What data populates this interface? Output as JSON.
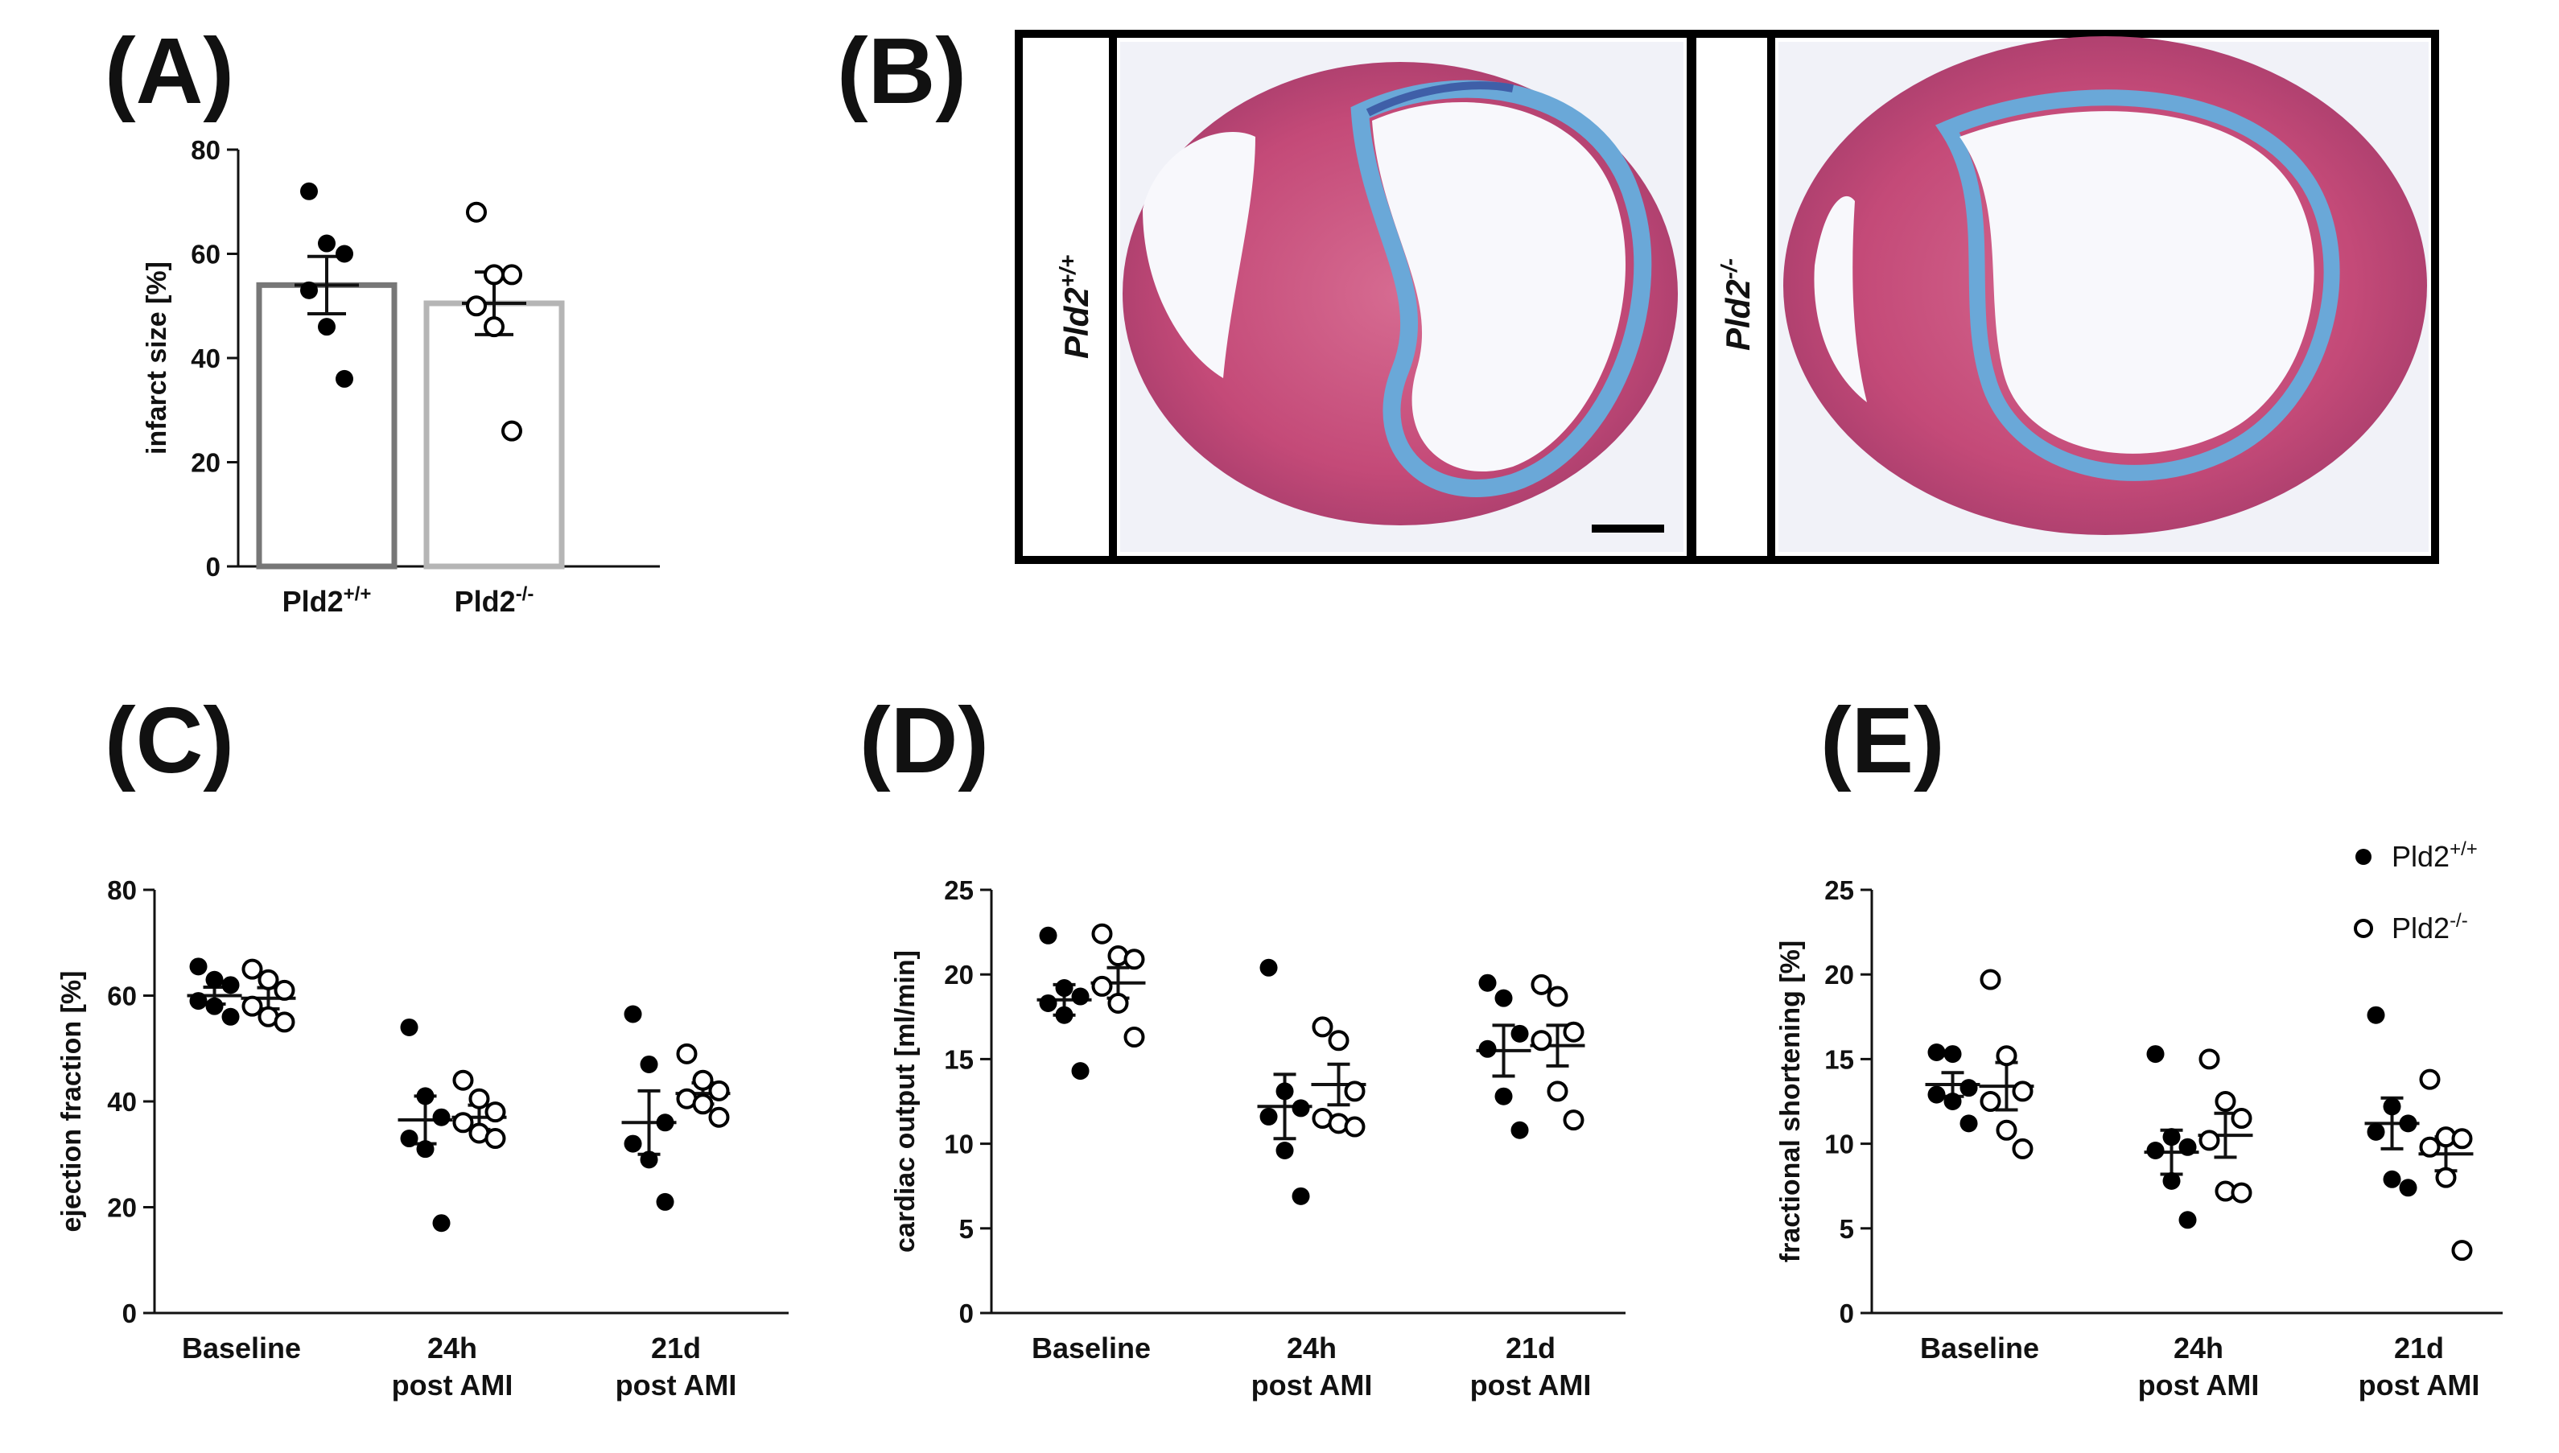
{
  "panels": {
    "a": "(A)",
    "b": "(B)",
    "c": "(C)",
    "d": "(D)",
    "e": "(E)"
  },
  "histology": {
    "left_label": "Pld2",
    "left_sup": "+/+",
    "right_label": "Pld2",
    "right_sup": "-/-"
  },
  "legend": {
    "wt": "Pld2",
    "wt_sup": "+/+",
    "ko": "Pld2",
    "ko_sup": "-/-"
  },
  "colors": {
    "wt_bar": "#777777",
    "ko_bar": "#b5b5b5",
    "stain_red": "#c44a78",
    "stain_blue": "#6aa8d8",
    "frame": "#000000"
  },
  "chart_data": [
    {
      "id": "A",
      "type": "bar",
      "ylabel": "infarct size [%]",
      "ylim": [
        0,
        80
      ],
      "yticks": [
        0,
        20,
        40,
        60,
        80
      ],
      "categories": [
        {
          "name": "Pld2",
          "sup": "+/+"
        },
        {
          "name": "Pld2",
          "sup": "-/-"
        }
      ],
      "series": [
        {
          "name": "Pld2+/+",
          "fill": "open",
          "mean": 54,
          "sem": 5.5,
          "points": [
            72,
            62,
            60,
            53,
            46,
            36
          ]
        },
        {
          "name": "Pld2-/-",
          "fill": "open",
          "mean": 50.5,
          "sem": 6,
          "points": [
            68,
            56,
            56,
            50,
            46,
            26
          ]
        }
      ]
    },
    {
      "id": "C",
      "type": "scatter",
      "ylabel": "ejection fraction [%]",
      "ylim": [
        0,
        80
      ],
      "yticks": [
        0,
        20,
        40,
        60,
        80
      ],
      "categories": [
        [
          "Baseline"
        ],
        [
          "24h",
          "post AMI"
        ],
        [
          "21d",
          "post AMI"
        ]
      ],
      "series": [
        {
          "name": "Pld2+/+",
          "marker": "filled",
          "means": [
            60,
            36.5,
            36
          ],
          "sems": [
            1.6,
            4.5,
            6
          ],
          "points": [
            [
              65.5,
              63,
              62,
              59,
              58,
              56
            ],
            [
              54,
              41,
              37,
              33,
              31,
              17
            ],
            [
              56.5,
              47,
              36,
              32,
              29,
              21
            ]
          ]
        },
        {
          "name": "Pld2-/-",
          "marker": "open",
          "means": [
            59.5,
            37,
            41.5
          ],
          "sems": [
            2,
            2.3,
            2
          ],
          "points": [
            [
              65,
              63,
              61,
              58,
              56,
              55
            ],
            [
              44,
              40.5,
              38,
              36,
              34,
              33
            ],
            [
              49,
              44,
              42,
              40.5,
              39.5,
              37
            ]
          ]
        }
      ]
    },
    {
      "id": "D",
      "type": "scatter",
      "ylabel": "cardiac output [ml/min]",
      "ylim": [
        0,
        25
      ],
      "yticks": [
        0,
        5,
        10,
        15,
        20,
        25
      ],
      "categories": [
        [
          "Baseline"
        ],
        [
          "24h",
          "post AMI"
        ],
        [
          "21d",
          "post AMI"
        ]
      ],
      "series": [
        {
          "name": "Pld2+/+",
          "marker": "filled",
          "means": [
            18.5,
            12.2,
            15.5
          ],
          "sems": [
            0.9,
            1.9,
            1.5
          ],
          "points": [
            [
              22.3,
              19.2,
              18.7,
              18.3,
              17.6,
              14.3
            ],
            [
              20.4,
              13.1,
              12.1,
              11.6,
              9.6,
              6.9
            ],
            [
              19.5,
              18.6,
              16.5,
              15.6,
              12.8,
              10.8
            ]
          ]
        },
        {
          "name": "Pld2-/-",
          "marker": "open",
          "means": [
            19.5,
            13.5,
            15.8
          ],
          "sems": [
            0.9,
            1.2,
            1.2
          ],
          "points": [
            [
              22.4,
              21.1,
              20.9,
              19.3,
              18.3,
              16.3
            ],
            [
              16.9,
              16.1,
              13.1,
              11.5,
              11.2,
              11.0
            ],
            [
              19.4,
              18.7,
              16.6,
              16.1,
              13.1,
              11.4
            ]
          ]
        }
      ]
    },
    {
      "id": "E",
      "type": "scatter",
      "ylabel": "fractional shortening [%]",
      "ylim": [
        0,
        25
      ],
      "yticks": [
        0,
        5,
        10,
        15,
        20,
        25
      ],
      "categories": [
        [
          "Baseline"
        ],
        [
          "24h",
          "post AMI"
        ],
        [
          "21d",
          "post AMI"
        ]
      ],
      "series": [
        {
          "name": "Pld2+/+",
          "marker": "filled",
          "means": [
            13.5,
            9.5,
            11.2
          ],
          "sems": [
            0.7,
            1.3,
            1.5
          ],
          "points": [
            [
              15.4,
              15.3,
              13.3,
              12.9,
              12.5,
              11.2
            ],
            [
              15.3,
              10.4,
              9.8,
              9.6,
              7.8,
              5.5
            ],
            [
              17.6,
              12.2,
              11.2,
              10.7,
              7.9,
              7.4
            ]
          ]
        },
        {
          "name": "Pld2-/-",
          "marker": "open",
          "means": [
            13.4,
            10.5,
            9.4
          ],
          "sems": [
            1.4,
            1.3,
            1.0
          ],
          "points": [
            [
              19.7,
              15.2,
              13.1,
              12.5,
              10.8,
              9.7
            ],
            [
              15.0,
              12.5,
              11.5,
              10.2,
              7.2,
              7.1
            ],
            [
              13.8,
              10.4,
              10.3,
              9.8,
              8.0,
              3.7
            ]
          ]
        }
      ]
    }
  ]
}
